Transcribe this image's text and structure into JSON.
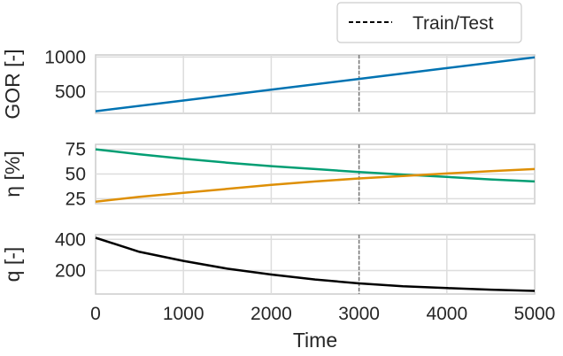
{
  "legend": {
    "label": "Train/Test"
  },
  "chart_data": [
    {
      "type": "line",
      "ylabel": "GOR [-]",
      "xlim": [
        0,
        5000
      ],
      "ylim": [
        190,
        1030
      ],
      "yticks": [
        500,
        1000
      ],
      "xticks": [
        0,
        1000,
        2000,
        3000,
        4000,
        5000
      ],
      "grid": true,
      "train_test_split_x": 3000,
      "series": [
        {
          "color": "#0173b2",
          "x": [
            0,
            1000,
            2000,
            3000,
            4000,
            5000
          ],
          "values": [
            220,
            375,
            530,
            685,
            840,
            995
          ]
        }
      ]
    },
    {
      "type": "line",
      "ylabel": "η [%]",
      "xlim": [
        0,
        5000
      ],
      "ylim": [
        20,
        80
      ],
      "yticks": [
        25,
        50,
        75
      ],
      "xticks": [
        0,
        1000,
        2000,
        3000,
        4000,
        5000
      ],
      "grid": true,
      "train_test_split_x": 3000,
      "series": [
        {
          "color": "#029e73",
          "x": [
            0,
            500,
            1000,
            1500,
            2000,
            2500,
            3000,
            3500,
            4000,
            4500,
            5000
          ],
          "values": [
            75,
            70,
            65.5,
            61.5,
            58,
            55,
            52,
            49.5,
            47,
            44.5,
            42.5
          ]
        },
        {
          "color": "#de8f05",
          "x": [
            0,
            500,
            1000,
            1500,
            2000,
            2500,
            3000,
            3500,
            4000,
            4500,
            5000
          ],
          "values": [
            22,
            27,
            31,
            35,
            39,
            42.5,
            45.5,
            48,
            50.5,
            53,
            55
          ]
        }
      ]
    },
    {
      "type": "line",
      "ylabel": "q [-]",
      "xlabel": "Time",
      "xlim": [
        0,
        5000
      ],
      "ylim": [
        50,
        430
      ],
      "yticks": [
        200,
        400
      ],
      "xticks": [
        0,
        1000,
        2000,
        3000,
        4000,
        5000
      ],
      "grid": true,
      "train_test_split_x": 3000,
      "series": [
        {
          "color": "#000000",
          "x": [
            0,
            500,
            1000,
            1500,
            2000,
            2500,
            3000,
            3500,
            4000,
            4500,
            5000
          ],
          "values": [
            410,
            320,
            262,
            212,
            175,
            143,
            118,
            100,
            88,
            78,
            70
          ]
        }
      ]
    }
  ]
}
